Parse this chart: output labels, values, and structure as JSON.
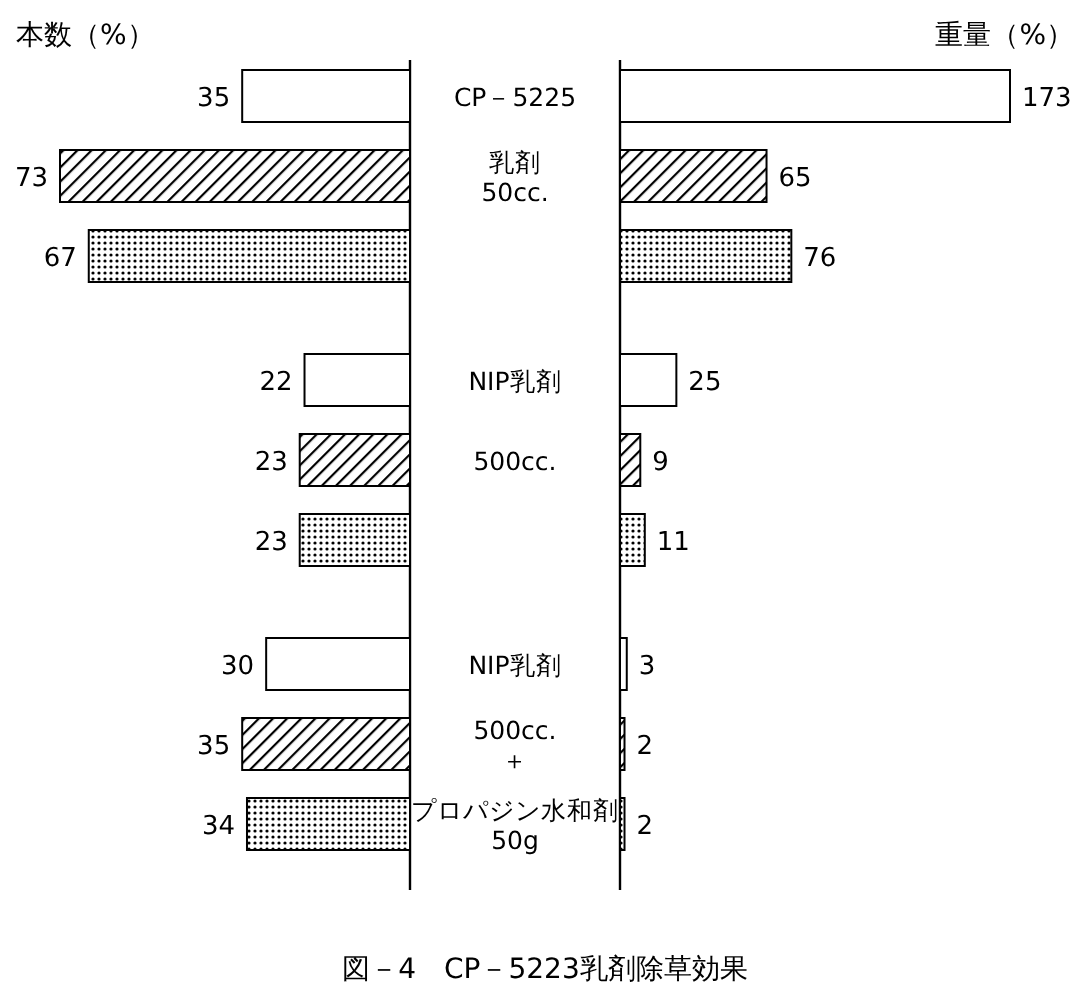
{
  "chart_data": [
    {
      "type": "bar",
      "orientation": "horizontal",
      "title": "本数（%）",
      "categories": [
        "CP－5225",
        "乳剤\n50cc.",
        null,
        "NIP乳剤",
        "500cc.",
        null,
        "NIP乳剤",
        "500cc.\n＋",
        "プロパジン水和剤\n50g"
      ],
      "data_labels": true,
      "series": [
        {
          "color": "#000000",
          "values": [
            35,
            null,
            null,
            22,
            null,
            null,
            30,
            null,
            null
          ]
        },
        {
          "color": "#000000",
          "values": [
            null,
            73,
            null,
            null,
            23,
            null,
            null,
            35,
            null
          ]
        },
        {
          "color": "#000000",
          "values": [
            null,
            null,
            67,
            null,
            null,
            23,
            null,
            null,
            34
          ]
        }
      ],
      "annotations": [
        "図－4　CP－5223乳剤除草効果"
      ]
    },
    {
      "type": "bar",
      "orientation": "horizontal",
      "title": "重量（%）",
      "data_labels": true,
      "series": [
        {
          "color": "#000000",
          "values": [
            173,
            null,
            null,
            25,
            null,
            null,
            3,
            null,
            null
          ]
        },
        {
          "color": "#000000",
          "values": [
            null,
            65,
            null,
            null,
            9,
            null,
            null,
            2,
            null
          ]
        },
        {
          "color": "#000000",
          "values": [
            null,
            null,
            76,
            null,
            null,
            11,
            null,
            null,
            2
          ]
        }
      ]
    }
  ]
}
